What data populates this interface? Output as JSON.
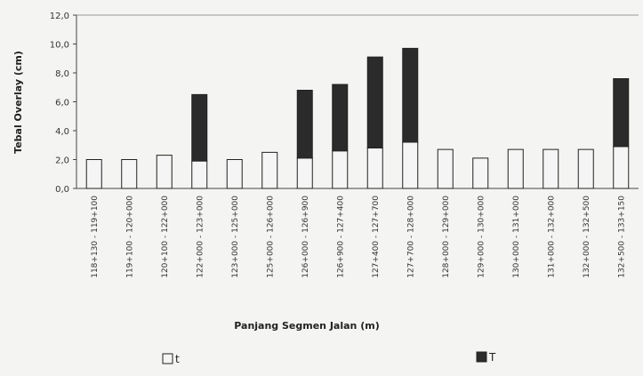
{
  "chart_data": {
    "type": "bar",
    "stacked": true,
    "ylabel": "Tebal Overlay (cm)",
    "xlabel": "Panjang Segmen Jalan (m)",
    "ylim": [
      0,
      12
    ],
    "yticks": [
      "0,0",
      "2,0",
      "4,0",
      "6,0",
      "8,0",
      "10,0",
      "12,0"
    ],
    "grid": false,
    "legend_position": "bottom",
    "categories": [
      "118+130 - 119+100",
      "119+100 - 120+000",
      "120+100 - 122+000",
      "122+000 - 123+000",
      "123+000 - 125+000",
      "125+000 - 126+000",
      "126+000 - 126+900",
      "126+900 - 127+400",
      "127+400 - 127+700",
      "127+700 - 128+000",
      "128+000 - 129+000",
      "129+000 - 130+000",
      "130+000 - 131+000",
      "131+000 - 132+000",
      "132+000 - 132+500",
      "132+500 - 133+150"
    ],
    "series": [
      {
        "name": "t",
        "color": "#f5f5f5",
        "values": [
          2.0,
          2.0,
          2.3,
          1.9,
          2.0,
          2.5,
          2.1,
          2.6,
          2.8,
          3.2,
          2.7,
          2.1,
          2.7,
          2.7,
          2.7,
          2.9
        ]
      },
      {
        "name": "T",
        "color": "#2b2b2b",
        "values": [
          0,
          0,
          0,
          4.6,
          0,
          0,
          4.7,
          4.6,
          6.3,
          6.5,
          0,
          0,
          0,
          0,
          0,
          4.7
        ]
      }
    ]
  }
}
